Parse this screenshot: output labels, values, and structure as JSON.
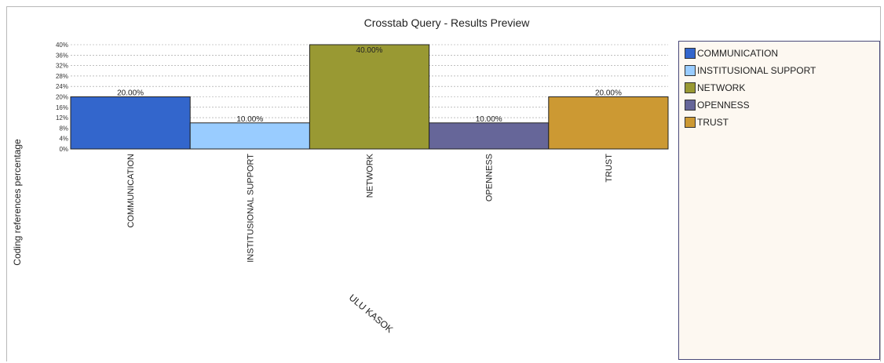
{
  "chart_data": {
    "type": "bar",
    "title": "Crosstab Query - Results Preview",
    "ylabel": "Coding references percentage",
    "xlabel": "ULU KASOK",
    "categories": [
      "COMMUNICATION",
      "INSTITUSIONAL SUPPORT",
      "NETWORK",
      "OPENNESS",
      "TRUST"
    ],
    "values": [
      20,
      10,
      40,
      10,
      20
    ],
    "value_labels": [
      "20.00%",
      "10.00%",
      "40.00%",
      "10.00%",
      "20.00%"
    ],
    "colors": [
      "#3366cc",
      "#99ccff",
      "#999933",
      "#666699",
      "#cc9933"
    ],
    "ylim": [
      0,
      40
    ],
    "yticks": [
      "0%",
      "4%",
      "8%",
      "12%",
      "16%",
      "20%",
      "24%",
      "28%",
      "32%",
      "36%",
      "40%"
    ],
    "grid": true,
    "legend_position": "right",
    "legend": [
      "COMMUNICATION",
      "INSTITUSIONAL SUPPORT",
      "NETWORK",
      "OPENNESS",
      "TRUST"
    ]
  }
}
